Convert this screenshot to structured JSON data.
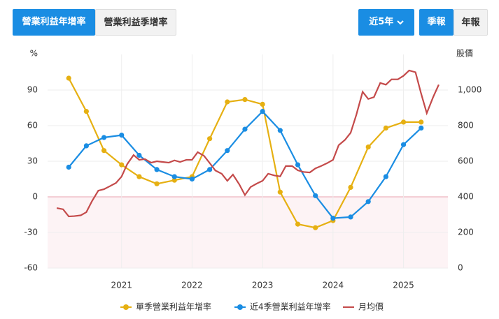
{
  "tabs": [
    "營業利益年增率",
    "營業利益季增率"
  ],
  "controls": {
    "range": "近5年",
    "periods": [
      "季報",
      "年報"
    ]
  },
  "chart_data": {
    "type": "line",
    "y_label": "%",
    "y2_label": "股價",
    "xlim": [
      2019.95,
      2025.63
    ],
    "xticks": [
      2021,
      2022,
      2023,
      2024,
      2025
    ],
    "ylim": [
      -60,
      120
    ],
    "yticks": [
      -60,
      -30,
      0,
      30,
      60,
      90
    ],
    "y2lim": [
      0,
      1200
    ],
    "y2ticks": [
      0,
      200,
      400,
      600,
      800,
      {
        "value": 1000,
        "label": "1,000"
      }
    ],
    "grid": true,
    "legend": "bottom",
    "series": [
      {
        "name": "單季營業利益年增率",
        "color": "#e6b012",
        "markers": true,
        "x": [
          2020.25,
          2020.5,
          2020.75,
          2021.0,
          2021.25,
          2021.5,
          2021.75,
          2022.0,
          2022.25,
          2022.5,
          2022.75,
          2023.0,
          2023.25,
          2023.5,
          2023.75,
          2024.0,
          2024.25,
          2024.5,
          2024.75,
          2025.0,
          2025.25
        ],
        "values": [
          100,
          72,
          39,
          27,
          17,
          11,
          14,
          17,
          49,
          80,
          82,
          78,
          4,
          -23,
          -26,
          -20,
          8,
          42,
          58,
          63,
          63
        ]
      },
      {
        "name": "近4季營業利益年增率",
        "color": "#1a8de3",
        "markers": true,
        "x": [
          2020.25,
          2020.5,
          2020.75,
          2021.0,
          2021.25,
          2021.5,
          2021.75,
          2022.0,
          2022.25,
          2022.5,
          2022.75,
          2023.0,
          2023.25,
          2023.5,
          2023.75,
          2024.0,
          2024.25,
          2024.5,
          2024.75,
          2025.0,
          2025.25
        ],
        "values": [
          25,
          43,
          50,
          52,
          35,
          23,
          17,
          15,
          23,
          39,
          57,
          72,
          56,
          27,
          1,
          -18,
          -17,
          -4,
          17,
          44,
          58
        ]
      },
      {
        "name": "月均價",
        "color": "#c44a4a",
        "markers": false,
        "axis": "y2",
        "x": [
          2020.08,
          2020.17,
          2020.25,
          2020.33,
          2020.42,
          2020.5,
          2020.58,
          2020.67,
          2020.75,
          2020.83,
          2020.92,
          2021.0,
          2021.08,
          2021.17,
          2021.25,
          2021.33,
          2021.42,
          2021.5,
          2021.58,
          2021.67,
          2021.75,
          2021.83,
          2021.92,
          2022.0,
          2022.08,
          2022.17,
          2022.25,
          2022.33,
          2022.42,
          2022.5,
          2022.58,
          2022.67,
          2022.75,
          2022.83,
          2022.92,
          2023.0,
          2023.08,
          2023.17,
          2023.25,
          2023.33,
          2023.42,
          2023.5,
          2023.58,
          2023.67,
          2023.75,
          2023.83,
          2023.92,
          2024.0,
          2024.08,
          2024.17,
          2024.25,
          2024.33,
          2024.42,
          2024.5,
          2024.58,
          2024.67,
          2024.75,
          2024.83,
          2024.92,
          2025.0,
          2025.08,
          2025.17,
          2025.25,
          2025.33,
          2025.42,
          2025.5
        ],
        "values": [
          337,
          330,
          290,
          292,
          296,
          314,
          376,
          435,
          443,
          459,
          478,
          514,
          584,
          635,
          608,
          612,
          592,
          600,
          596,
          592,
          605,
          596,
          608,
          608,
          651,
          630,
          590,
          548,
          530,
          490,
          525,
          470,
          410,
          455,
          475,
          490,
          530,
          520,
          515,
          573,
          573,
          549,
          540,
          537,
          560,
          573,
          590,
          608,
          690,
          720,
          760,
          860,
          990,
          950,
          960,
          1040,
          1030,
          1060,
          1060,
          1080,
          1110,
          1100,
          980,
          870,
          960,
          1030
        ]
      }
    ]
  }
}
